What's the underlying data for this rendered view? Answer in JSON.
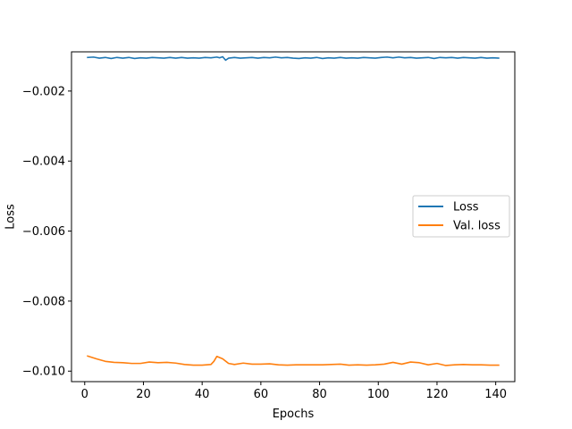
{
  "chart_data": {
    "type": "line",
    "title": "",
    "xlabel": "Epochs",
    "ylabel": "Loss",
    "xlim": [
      -4.5,
      146.5
    ],
    "ylim": [
      -0.0103,
      -0.00088
    ],
    "x_ticks": [
      0,
      20,
      40,
      60,
      80,
      100,
      120,
      140
    ],
    "x_tick_labels": [
      "0",
      "20",
      "40",
      "60",
      "80",
      "100",
      "120",
      "140"
    ],
    "y_ticks": [
      -0.002,
      -0.004,
      -0.006,
      -0.008,
      -0.01
    ],
    "y_tick_labels": [
      "−0.002",
      "−0.004",
      "−0.006",
      "−0.008",
      "−0.010"
    ],
    "grid": false,
    "legend": {
      "position": "center-right"
    },
    "series": [
      {
        "name": "Loss",
        "color": "#1f77b4",
        "x": [
          1,
          3,
          5,
          7,
          9,
          11,
          13,
          15,
          17,
          19,
          21,
          23,
          25,
          27,
          29,
          31,
          33,
          35,
          37,
          39,
          41,
          43,
          45,
          46,
          47,
          48,
          49,
          51,
          53,
          55,
          57,
          59,
          61,
          63,
          65,
          67,
          69,
          71,
          73,
          75,
          77,
          79,
          81,
          83,
          85,
          87,
          89,
          91,
          93,
          95,
          97,
          99,
          101,
          103,
          105,
          107,
          109,
          111,
          113,
          115,
          117,
          119,
          121,
          123,
          125,
          127,
          129,
          131,
          133,
          135,
          137,
          139,
          141
        ],
        "values": [
          -0.00104,
          -0.00103,
          -0.00106,
          -0.00104,
          -0.00107,
          -0.00104,
          -0.00106,
          -0.00104,
          -0.00107,
          -0.00105,
          -0.00106,
          -0.00104,
          -0.00105,
          -0.00106,
          -0.00104,
          -0.00106,
          -0.00104,
          -0.00106,
          -0.00105,
          -0.00106,
          -0.00104,
          -0.00105,
          -0.00103,
          -0.00105,
          -0.00102,
          -0.00112,
          -0.00106,
          -0.00104,
          -0.00106,
          -0.00105,
          -0.00104,
          -0.00106,
          -0.00104,
          -0.00105,
          -0.00103,
          -0.00105,
          -0.00104,
          -0.00106,
          -0.00107,
          -0.00105,
          -0.00106,
          -0.00104,
          -0.00107,
          -0.00105,
          -0.00106,
          -0.00104,
          -0.00106,
          -0.00105,
          -0.00106,
          -0.00104,
          -0.00105,
          -0.00106,
          -0.00104,
          -0.00103,
          -0.00105,
          -0.00103,
          -0.00105,
          -0.00104,
          -0.00106,
          -0.00105,
          -0.00104,
          -0.00107,
          -0.00104,
          -0.00105,
          -0.00104,
          -0.00106,
          -0.00104,
          -0.00105,
          -0.00106,
          -0.00104,
          -0.00106,
          -0.00105,
          -0.00106
        ]
      },
      {
        "name": "Val. loss",
        "color": "#ff7f0e",
        "x": [
          1,
          4,
          7,
          10,
          13,
          16,
          19,
          22,
          25,
          28,
          31,
          34,
          37,
          40,
          43,
          44,
          45,
          47,
          49,
          51,
          54,
          57,
          60,
          63,
          66,
          69,
          72,
          75,
          78,
          81,
          84,
          87,
          90,
          93,
          96,
          99,
          102,
          105,
          108,
          111,
          114,
          117,
          120,
          123,
          126,
          129,
          132,
          135,
          138,
          141
        ],
        "values": [
          -0.00957,
          -0.00965,
          -0.00972,
          -0.00975,
          -0.00976,
          -0.00978,
          -0.00978,
          -0.00974,
          -0.00976,
          -0.00975,
          -0.00977,
          -0.00981,
          -0.00983,
          -0.00983,
          -0.00981,
          -0.00972,
          -0.00958,
          -0.00965,
          -0.00978,
          -0.00981,
          -0.00977,
          -0.0098,
          -0.0098,
          -0.00979,
          -0.00982,
          -0.00983,
          -0.00982,
          -0.00982,
          -0.00982,
          -0.00982,
          -0.00981,
          -0.0098,
          -0.00983,
          -0.00982,
          -0.00983,
          -0.00982,
          -0.0098,
          -0.00975,
          -0.0098,
          -0.00974,
          -0.00976,
          -0.00982,
          -0.00978,
          -0.00984,
          -0.00982,
          -0.00981,
          -0.00982,
          -0.00982,
          -0.00983,
          -0.00983
        ]
      }
    ]
  }
}
